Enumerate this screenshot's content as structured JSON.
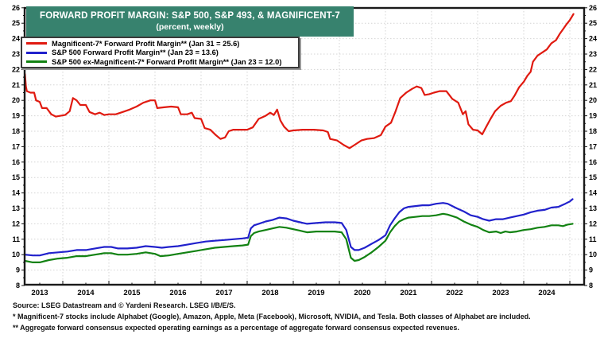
{
  "title": {
    "line1": "FORWARD PROFIT MARGIN: S&P 500, S&P 493, & MAGNIFICENT-7",
    "line2": "(percent, weekly)"
  },
  "legend": {
    "items": [
      {
        "label": "Magnificent-7* Forward Profit Margin** (Jan 31 = 25.6)",
        "color": "#e01a10"
      },
      {
        "label": "S&P 500 Forward Profit Margin** (Jan 23 = 13.6)",
        "color": "#2121cc"
      },
      {
        "label": "S&P 500 ex-Magnificent-7* Forward Profit Margin** (Jan 23 = 12.0)",
        "color": "#128212"
      }
    ]
  },
  "footer": {
    "source": "Source: LSEG Datastream and © Yardeni Research. LSEG I/B/E/S.",
    "note1": "* Magnificent-7 stocks include Alphabet (Google), Amazon, Apple, Meta (Facebook), Microsoft, NVIDIA, and Tesla. Both classes of Alphabet are included.",
    "note2": "** Aggregate forward consensus expected operating earnings as a percentage of aggregate forward consensus expected revenues."
  },
  "colors": {
    "banner_bg": "#37826e",
    "banner_text": "#ffffff",
    "axis": "#1a1a1a",
    "grid": "#d4d4d4",
    "tick_label": "#000000"
  },
  "chart_data": {
    "type": "line",
    "title": "FORWARD PROFIT MARGIN: S&P 500, S&P 493, & MAGNIFICENT-7",
    "subtitle": "(percent, weekly)",
    "xlabel": "",
    "ylabel": "percent",
    "ylim": [
      8,
      26
    ],
    "y_ticks": [
      8,
      9,
      10,
      11,
      12,
      13,
      14,
      15,
      16,
      17,
      18,
      19,
      20,
      21,
      22,
      23,
      24,
      25,
      26
    ],
    "x_years": [
      2013,
      2014,
      2015,
      2016,
      2017,
      2018,
      2019,
      2020,
      2021,
      2022,
      2023,
      2024
    ],
    "xlim": [
      2013.0,
      2025.3
    ],
    "grid": "faint dotted; horizontal each integer, vertical each year boundary",
    "legend_position": "top-left box",
    "series": [
      {
        "name": "Magnificent-7 Forward Profit Margin",
        "end_label": "Jan 31 = 25.6",
        "color": "#e01a10",
        "points": [
          [
            2013.18,
            21.7
          ],
          [
            2013.2,
            20.9
          ],
          [
            2013.22,
            20.6
          ],
          [
            2013.3,
            20.5
          ],
          [
            2013.38,
            20.5
          ],
          [
            2013.42,
            20.0
          ],
          [
            2013.5,
            19.9
          ],
          [
            2013.55,
            19.5
          ],
          [
            2013.65,
            19.5
          ],
          [
            2013.75,
            19.1
          ],
          [
            2013.85,
            18.95
          ],
          [
            2013.95,
            19.0
          ],
          [
            2014.05,
            19.05
          ],
          [
            2014.15,
            19.3
          ],
          [
            2014.22,
            20.15
          ],
          [
            2014.3,
            20.0
          ],
          [
            2014.38,
            19.7
          ],
          [
            2014.5,
            19.7
          ],
          [
            2014.58,
            19.25
          ],
          [
            2014.7,
            19.1
          ],
          [
            2014.8,
            19.2
          ],
          [
            2014.9,
            19.05
          ],
          [
            2015.0,
            19.1
          ],
          [
            2015.15,
            19.1
          ],
          [
            2015.3,
            19.25
          ],
          [
            2015.45,
            19.4
          ],
          [
            2015.6,
            19.6
          ],
          [
            2015.75,
            19.85
          ],
          [
            2015.9,
            20.0
          ],
          [
            2016.0,
            20.0
          ],
          [
            2016.05,
            19.5
          ],
          [
            2016.2,
            19.55
          ],
          [
            2016.35,
            19.6
          ],
          [
            2016.5,
            19.55
          ],
          [
            2016.56,
            19.1
          ],
          [
            2016.7,
            19.1
          ],
          [
            2016.8,
            19.2
          ],
          [
            2016.86,
            18.85
          ],
          [
            2017.0,
            18.8
          ],
          [
            2017.08,
            18.2
          ],
          [
            2017.2,
            18.1
          ],
          [
            2017.32,
            17.75
          ],
          [
            2017.42,
            17.5
          ],
          [
            2017.52,
            17.6
          ],
          [
            2017.6,
            18.0
          ],
          [
            2017.7,
            18.1
          ],
          [
            2017.85,
            18.1
          ],
          [
            2018.0,
            18.1
          ],
          [
            2018.12,
            18.25
          ],
          [
            2018.25,
            18.8
          ],
          [
            2018.4,
            19.0
          ],
          [
            2018.5,
            19.2
          ],
          [
            2018.58,
            19.05
          ],
          [
            2018.65,
            19.4
          ],
          [
            2018.72,
            18.7
          ],
          [
            2018.8,
            18.3
          ],
          [
            2018.9,
            18.0
          ],
          [
            2019.0,
            18.05
          ],
          [
            2019.2,
            18.1
          ],
          [
            2019.45,
            18.1
          ],
          [
            2019.65,
            18.05
          ],
          [
            2019.75,
            17.95
          ],
          [
            2019.8,
            17.5
          ],
          [
            2019.95,
            17.4
          ],
          [
            2020.1,
            17.1
          ],
          [
            2020.22,
            16.9
          ],
          [
            2020.35,
            17.15
          ],
          [
            2020.48,
            17.4
          ],
          [
            2020.6,
            17.5
          ],
          [
            2020.75,
            17.55
          ],
          [
            2020.9,
            17.75
          ],
          [
            2021.0,
            18.3
          ],
          [
            2021.12,
            18.55
          ],
          [
            2021.22,
            19.3
          ],
          [
            2021.32,
            20.15
          ],
          [
            2021.45,
            20.5
          ],
          [
            2021.58,
            20.75
          ],
          [
            2021.68,
            20.9
          ],
          [
            2021.78,
            20.8
          ],
          [
            2021.85,
            20.35
          ],
          [
            2021.95,
            20.4
          ],
          [
            2022.05,
            20.5
          ],
          [
            2022.18,
            20.6
          ],
          [
            2022.32,
            20.6
          ],
          [
            2022.45,
            20.1
          ],
          [
            2022.58,
            19.85
          ],
          [
            2022.68,
            19.1
          ],
          [
            2022.74,
            19.3
          ],
          [
            2022.8,
            18.45
          ],
          [
            2022.9,
            18.1
          ],
          [
            2023.0,
            18.05
          ],
          [
            2023.1,
            17.8
          ],
          [
            2023.18,
            18.25
          ],
          [
            2023.28,
            18.8
          ],
          [
            2023.38,
            19.3
          ],
          [
            2023.5,
            19.65
          ],
          [
            2023.62,
            19.85
          ],
          [
            2023.72,
            19.95
          ],
          [
            2023.8,
            20.3
          ],
          [
            2023.9,
            20.85
          ],
          [
            2024.0,
            21.2
          ],
          [
            2024.08,
            21.6
          ],
          [
            2024.15,
            21.85
          ],
          [
            2024.2,
            22.5
          ],
          [
            2024.3,
            22.9
          ],
          [
            2024.4,
            23.1
          ],
          [
            2024.5,
            23.3
          ],
          [
            2024.6,
            23.7
          ],
          [
            2024.7,
            23.9
          ],
          [
            2024.78,
            24.3
          ],
          [
            2024.85,
            24.6
          ],
          [
            2024.92,
            24.9
          ],
          [
            2025.0,
            25.2
          ],
          [
            2025.05,
            25.45
          ],
          [
            2025.08,
            25.6
          ]
        ]
      },
      {
        "name": "S&P 500 Forward Profit Margin",
        "end_label": "Jan 23 = 13.6",
        "color": "#2121cc",
        "points": [
          [
            2013.18,
            10.0
          ],
          [
            2013.35,
            9.95
          ],
          [
            2013.5,
            9.95
          ],
          [
            2013.7,
            10.1
          ],
          [
            2013.9,
            10.15
          ],
          [
            2014.1,
            10.2
          ],
          [
            2014.3,
            10.3
          ],
          [
            2014.5,
            10.3
          ],
          [
            2014.7,
            10.4
          ],
          [
            2014.9,
            10.5
          ],
          [
            2015.05,
            10.5
          ],
          [
            2015.2,
            10.4
          ],
          [
            2015.4,
            10.4
          ],
          [
            2015.6,
            10.45
          ],
          [
            2015.8,
            10.55
          ],
          [
            2016.0,
            10.5
          ],
          [
            2016.15,
            10.45
          ],
          [
            2016.3,
            10.5
          ],
          [
            2016.5,
            10.55
          ],
          [
            2016.7,
            10.65
          ],
          [
            2016.9,
            10.75
          ],
          [
            2017.1,
            10.85
          ],
          [
            2017.3,
            10.9
          ],
          [
            2017.5,
            10.95
          ],
          [
            2017.7,
            11.0
          ],
          [
            2017.9,
            11.05
          ],
          [
            2018.02,
            11.1
          ],
          [
            2018.08,
            11.7
          ],
          [
            2018.15,
            11.9
          ],
          [
            2018.25,
            12.0
          ],
          [
            2018.4,
            12.15
          ],
          [
            2018.55,
            12.25
          ],
          [
            2018.7,
            12.4
          ],
          [
            2018.85,
            12.35
          ],
          [
            2019.0,
            12.2
          ],
          [
            2019.15,
            12.1
          ],
          [
            2019.3,
            12.0
          ],
          [
            2019.5,
            12.05
          ],
          [
            2019.7,
            12.1
          ],
          [
            2019.9,
            12.1
          ],
          [
            2020.05,
            12.05
          ],
          [
            2020.15,
            11.6
          ],
          [
            2020.25,
            10.5
          ],
          [
            2020.33,
            10.3
          ],
          [
            2020.42,
            10.3
          ],
          [
            2020.55,
            10.45
          ],
          [
            2020.7,
            10.7
          ],
          [
            2020.85,
            10.95
          ],
          [
            2021.0,
            11.25
          ],
          [
            2021.1,
            11.9
          ],
          [
            2021.2,
            12.35
          ],
          [
            2021.3,
            12.75
          ],
          [
            2021.4,
            13.0
          ],
          [
            2021.5,
            13.1
          ],
          [
            2021.65,
            13.15
          ],
          [
            2021.8,
            13.2
          ],
          [
            2021.95,
            13.2
          ],
          [
            2022.1,
            13.3
          ],
          [
            2022.25,
            13.35
          ],
          [
            2022.35,
            13.3
          ],
          [
            2022.45,
            13.15
          ],
          [
            2022.55,
            13.0
          ],
          [
            2022.7,
            12.8
          ],
          [
            2022.85,
            12.55
          ],
          [
            2023.0,
            12.45
          ],
          [
            2023.12,
            12.3
          ],
          [
            2023.25,
            12.2
          ],
          [
            2023.4,
            12.3
          ],
          [
            2023.55,
            12.3
          ],
          [
            2023.7,
            12.4
          ],
          [
            2023.85,
            12.5
          ],
          [
            2024.0,
            12.6
          ],
          [
            2024.15,
            12.75
          ],
          [
            2024.3,
            12.85
          ],
          [
            2024.45,
            12.9
          ],
          [
            2024.6,
            13.05
          ],
          [
            2024.75,
            13.1
          ],
          [
            2024.9,
            13.3
          ],
          [
            2025.0,
            13.45
          ],
          [
            2025.06,
            13.6
          ]
        ]
      },
      {
        "name": "S&P 500 ex-Magnificent-7 Forward Profit Margin",
        "end_label": "Jan 23 = 12.0",
        "color": "#128212",
        "points": [
          [
            2013.18,
            9.6
          ],
          [
            2013.35,
            9.5
          ],
          [
            2013.5,
            9.5
          ],
          [
            2013.7,
            9.65
          ],
          [
            2013.9,
            9.75
          ],
          [
            2014.1,
            9.8
          ],
          [
            2014.3,
            9.9
          ],
          [
            2014.5,
            9.9
          ],
          [
            2014.7,
            10.0
          ],
          [
            2014.9,
            10.1
          ],
          [
            2015.05,
            10.1
          ],
          [
            2015.2,
            10.0
          ],
          [
            2015.4,
            10.0
          ],
          [
            2015.6,
            10.05
          ],
          [
            2015.8,
            10.15
          ],
          [
            2016.0,
            10.05
          ],
          [
            2016.12,
            9.9
          ],
          [
            2016.3,
            9.95
          ],
          [
            2016.5,
            10.05
          ],
          [
            2016.7,
            10.15
          ],
          [
            2016.9,
            10.25
          ],
          [
            2017.1,
            10.35
          ],
          [
            2017.3,
            10.45
          ],
          [
            2017.5,
            10.5
          ],
          [
            2017.7,
            10.55
          ],
          [
            2017.9,
            10.6
          ],
          [
            2018.02,
            10.65
          ],
          [
            2018.08,
            11.2
          ],
          [
            2018.15,
            11.4
          ],
          [
            2018.25,
            11.5
          ],
          [
            2018.4,
            11.6
          ],
          [
            2018.55,
            11.7
          ],
          [
            2018.7,
            11.8
          ],
          [
            2018.85,
            11.75
          ],
          [
            2019.0,
            11.65
          ],
          [
            2019.15,
            11.55
          ],
          [
            2019.3,
            11.45
          ],
          [
            2019.5,
            11.5
          ],
          [
            2019.7,
            11.5
          ],
          [
            2019.9,
            11.5
          ],
          [
            2020.05,
            11.45
          ],
          [
            2020.15,
            11.0
          ],
          [
            2020.25,
            9.8
          ],
          [
            2020.33,
            9.6
          ],
          [
            2020.42,
            9.65
          ],
          [
            2020.55,
            9.85
          ],
          [
            2020.7,
            10.15
          ],
          [
            2020.85,
            10.5
          ],
          [
            2021.0,
            10.9
          ],
          [
            2021.1,
            11.45
          ],
          [
            2021.2,
            11.85
          ],
          [
            2021.3,
            12.15
          ],
          [
            2021.4,
            12.3
          ],
          [
            2021.5,
            12.4
          ],
          [
            2021.65,
            12.45
          ],
          [
            2021.8,
            12.5
          ],
          [
            2021.95,
            12.5
          ],
          [
            2022.1,
            12.55
          ],
          [
            2022.25,
            12.65
          ],
          [
            2022.35,
            12.6
          ],
          [
            2022.45,
            12.5
          ],
          [
            2022.55,
            12.4
          ],
          [
            2022.7,
            12.15
          ],
          [
            2022.85,
            11.95
          ],
          [
            2023.0,
            11.8
          ],
          [
            2023.12,
            11.6
          ],
          [
            2023.25,
            11.45
          ],
          [
            2023.4,
            11.5
          ],
          [
            2023.5,
            11.4
          ],
          [
            2023.6,
            11.5
          ],
          [
            2023.7,
            11.45
          ],
          [
            2023.85,
            11.5
          ],
          [
            2024.0,
            11.6
          ],
          [
            2024.15,
            11.65
          ],
          [
            2024.3,
            11.75
          ],
          [
            2024.45,
            11.8
          ],
          [
            2024.6,
            11.9
          ],
          [
            2024.75,
            11.9
          ],
          [
            2024.85,
            11.85
          ],
          [
            2024.95,
            11.95
          ],
          [
            2025.06,
            12.0
          ]
        ]
      }
    ]
  }
}
